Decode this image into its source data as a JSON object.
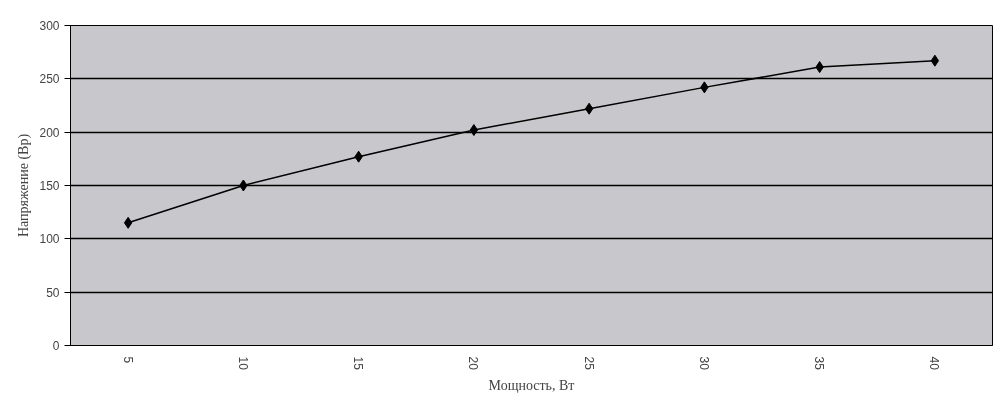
{
  "chart_data": {
    "type": "line",
    "xlabel": "Мощность, Вт",
    "ylabel": "Напряжение (Вр)",
    "categories": [
      "5",
      "10",
      "15",
      "20",
      "25",
      "30",
      "35",
      "40"
    ],
    "series": [
      {
        "color": "#000000",
        "values": [
          115,
          150,
          177,
          202,
          222,
          242,
          261,
          267
        ]
      }
    ],
    "ylim": [
      0,
      300
    ],
    "yticks": [
      0,
      50,
      100,
      150,
      200,
      250,
      300
    ],
    "grid": "y",
    "marker": "diamond",
    "line_style": "solid"
  }
}
